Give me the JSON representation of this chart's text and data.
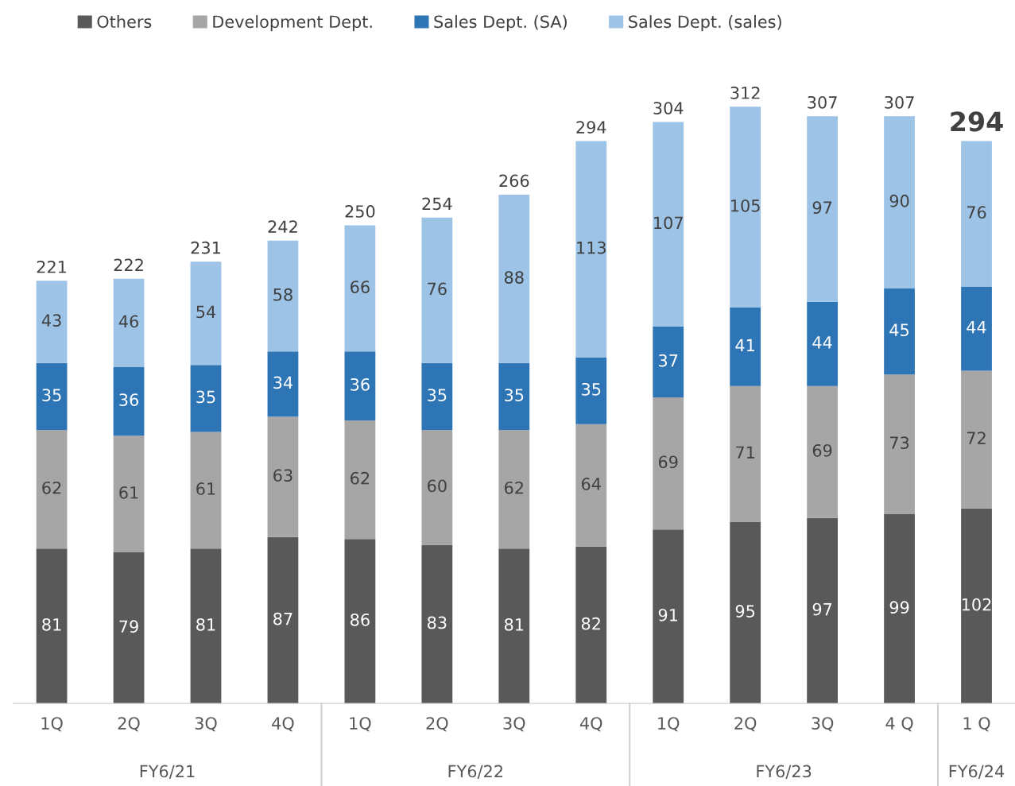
{
  "chart_data": {
    "type": "bar",
    "stacked": true,
    "data_labels": true,
    "legend": "top left",
    "grid": false,
    "categories": [
      "1Q",
      "2Q",
      "3Q",
      "4Q",
      "1Q",
      "2Q",
      "3Q",
      "4Q",
      "1Q",
      "2Q",
      "3Q",
      "4 Q",
      "1 Q"
    ],
    "series": [
      {
        "name": "Others",
        "color": "#595959",
        "values": [
          81,
          79,
          81,
          87,
          86,
          83,
          81,
          82,
          91,
          95,
          97,
          99,
          102
        ]
      },
      {
        "name": "Development Dept.",
        "color": "#a6a6a6",
        "values": [
          62,
          61,
          61,
          63,
          62,
          60,
          62,
          64,
          69,
          71,
          69,
          73,
          72
        ]
      },
      {
        "name": "Sales Dept. (SA)",
        "color": "#2e75b6",
        "values": [
          35,
          36,
          35,
          34,
          36,
          35,
          35,
          35,
          37,
          41,
          44,
          45,
          44
        ]
      },
      {
        "name": "Sales Dept. (sales)",
        "color": "#9dc3e6",
        "values": [
          43,
          46,
          54,
          58,
          66,
          76,
          88,
          113,
          107,
          105,
          97,
          90,
          76
        ]
      }
    ],
    "totals": [
      "221",
      "222",
      "231",
      "242",
      "250",
      "254",
      "266",
      "294",
      "304",
      "312",
      "307",
      "307",
      "294"
    ],
    "annotations": [
      "FY6/21",
      "FY6/22",
      "FY6/23",
      "FY6/24"
    ]
  }
}
